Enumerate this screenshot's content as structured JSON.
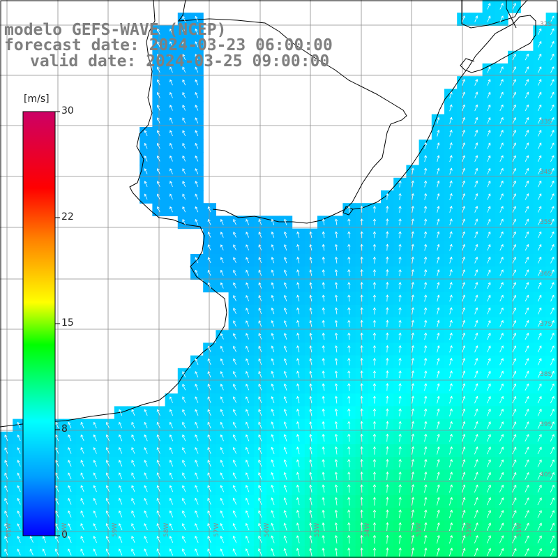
{
  "header": {
    "line1": "modelo GEFS-WAVE (NCEP)",
    "line2": "forecast date: 2024-03-23 06:00:00",
    "line3": "valid date: 2024-03-25 09:00:00"
  },
  "colorbar": {
    "unit": "[m/s]",
    "ticks": [
      "30",
      "22",
      "15",
      "8",
      "0"
    ],
    "range": [
      0,
      30
    ],
    "colors": [
      "#0000ff",
      "#00a0ff",
      "#00ffff",
      "#00ff00",
      "#ffff00",
      "#ff8000",
      "#ff0000",
      "#cc0066"
    ]
  },
  "map": {
    "latitude_labels": [
      "32S",
      "33S",
      "34S",
      "35S",
      "36S",
      "37S",
      "38S",
      "39S",
      "40S"
    ],
    "longitude_labels": [
      "61W",
      "60W",
      "59W",
      "58W",
      "57W",
      "56W",
      "55W",
      "54W",
      "53W",
      "52W",
      "51W"
    ],
    "field": "wind",
    "land_color": "#ffffff",
    "grid_color": "#8c8c8c",
    "coast_color": "#000000",
    "arrow_color": "#ffffff"
  }
}
